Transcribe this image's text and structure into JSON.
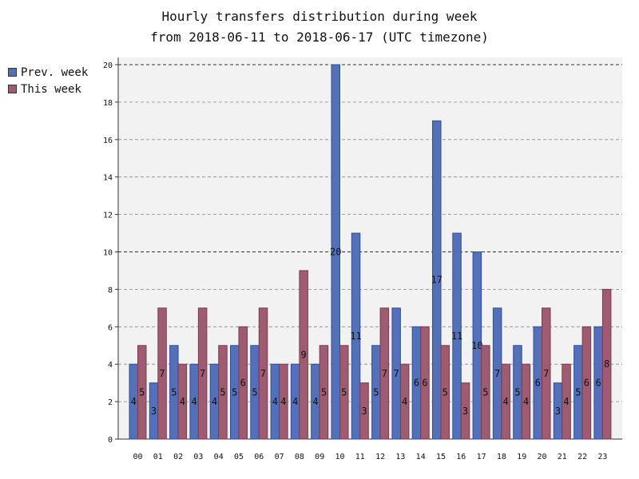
{
  "title_line1": "Hourly transfers distribution during week",
  "title_line2": "from 2018-06-11 to 2018-06-17 (UTC timezone)",
  "colors": {
    "prev": "#5470b8",
    "this": "#9e5c70",
    "plot_bg": "#f2f2f2",
    "grid": "#888888"
  },
  "chart_data": {
    "type": "bar",
    "title": "Hourly transfers distribution during week from 2018-06-11 to 2018-06-17 (UTC timezone)",
    "xlabel": "",
    "ylabel": "",
    "ylim": [
      0,
      20
    ],
    "yticks": [
      0,
      2,
      4,
      6,
      8,
      10,
      12,
      14,
      16,
      18,
      20
    ],
    "grid": true,
    "legend_position": "top-left, outside plot",
    "categories": [
      "00",
      "01",
      "02",
      "03",
      "04",
      "05",
      "06",
      "07",
      "08",
      "09",
      "10",
      "11",
      "12",
      "13",
      "14",
      "15",
      "16",
      "17",
      "18",
      "19",
      "20",
      "21",
      "22",
      "23"
    ],
    "series": [
      {
        "name": "Prev. week",
        "values": [
          4,
          3,
          5,
          4,
          4,
          5,
          5,
          4,
          4,
          4,
          20,
          11,
          5,
          7,
          6,
          17,
          11,
          10,
          7,
          5,
          6,
          3,
          5,
          6
        ]
      },
      {
        "name": "This week",
        "values": [
          5,
          7,
          4,
          7,
          5,
          6,
          7,
          4,
          9,
          5,
          5,
          3,
          7,
          4,
          6,
          5,
          3,
          5,
          4,
          4,
          7,
          4,
          6,
          8
        ]
      }
    ]
  }
}
